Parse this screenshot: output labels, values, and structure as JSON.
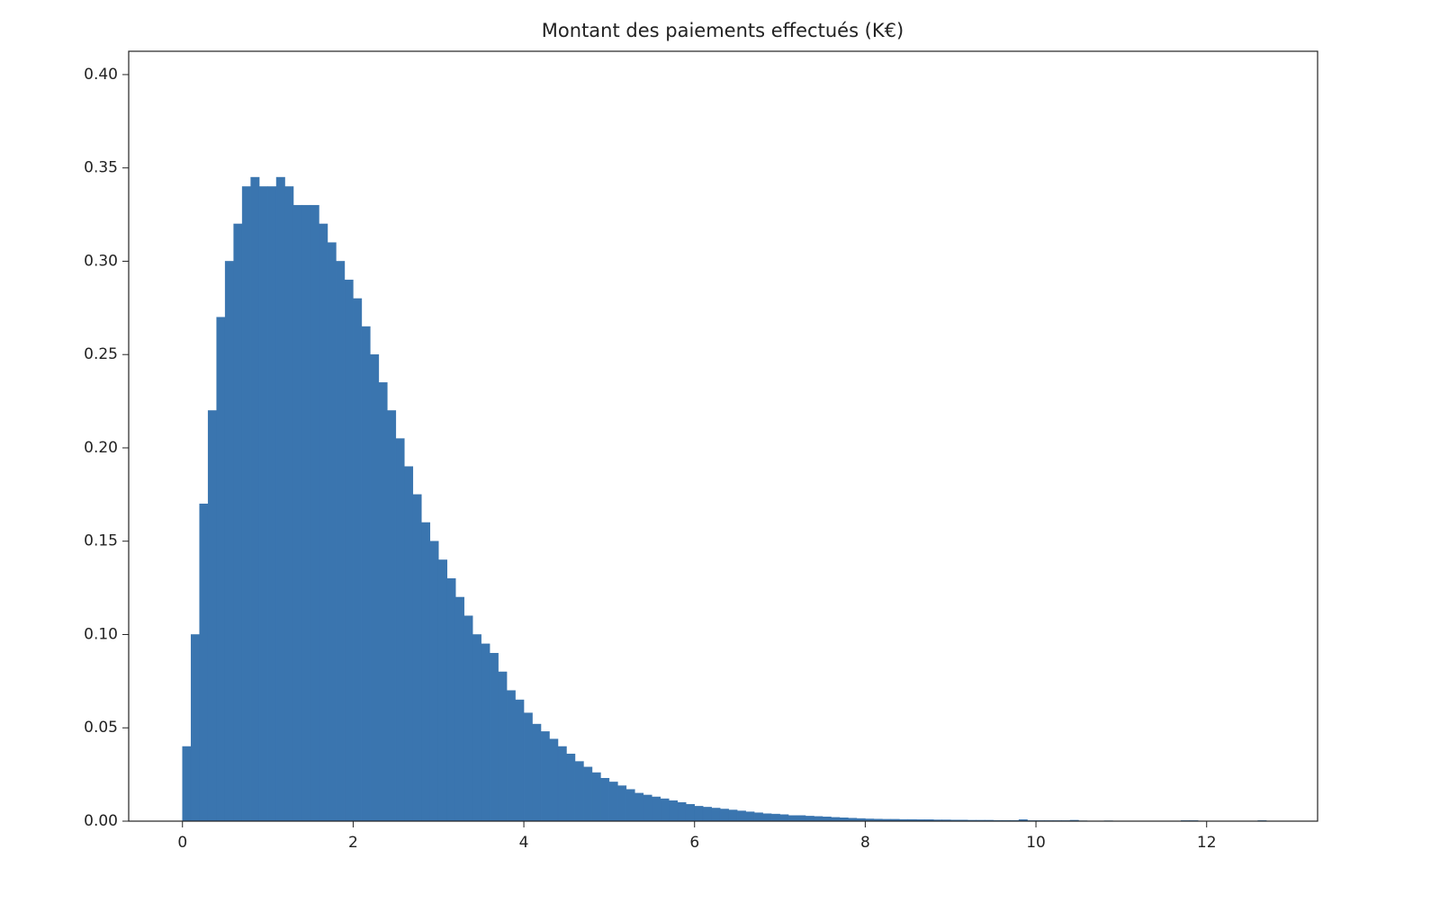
{
  "chart_data": {
    "type": "histogram",
    "title": "Montant des paiements effectués (K€)",
    "color": "#3a75af",
    "bins": [
      0,
      0.1,
      0.2,
      0.3,
      0.4,
      0.5,
      0.6,
      0.7,
      0.8,
      0.9,
      1,
      1.1,
      1.2,
      1.3,
      1.4,
      1.5,
      1.6,
      1.7,
      1.8,
      1.9,
      2,
      2.1,
      2.2,
      2.3,
      2.4,
      2.5,
      2.6,
      2.7,
      2.8,
      2.9,
      3,
      3.1,
      3.2,
      3.3,
      3.4,
      3.5,
      3.6,
      3.7,
      3.8,
      3.9,
      4,
      4.1,
      4.2,
      4.3,
      4.4,
      4.5,
      4.6,
      4.7,
      4.8,
      4.9,
      5,
      5.1,
      5.2,
      5.3,
      5.4,
      5.5,
      5.6,
      5.7,
      5.8,
      5.9,
      6,
      6.1,
      6.2,
      6.3,
      6.4,
      6.5,
      6.6,
      6.7,
      6.8,
      6.9,
      7,
      7.1,
      7.2,
      7.3,
      7.4,
      7.5,
      7.6,
      7.7,
      7.8,
      7.9,
      8,
      8.1,
      8.2,
      8.3,
      8.4,
      8.5,
      8.6,
      8.7,
      8.8,
      8.9,
      9,
      9.1,
      9.2,
      9.3,
      9.4,
      9.5,
      9.6,
      9.7,
      9.8,
      9.9,
      10,
      10.1,
      10.2,
      10.3,
      10.4,
      10.5,
      10.6,
      10.7,
      10.8,
      10.9,
      11,
      11.1,
      11.2,
      11.3,
      11.4,
      11.5,
      11.6,
      11.7,
      11.8,
      11.9,
      12,
      12.1,
      12.2,
      12.3,
      12.4,
      12.5,
      12.6,
      12.7
    ],
    "values": [
      0.04,
      0.1,
      0.17,
      0.22,
      0.27,
      0.3,
      0.32,
      0.34,
      0.345,
      0.34,
      0.34,
      0.345,
      0.34,
      0.33,
      0.33,
      0.33,
      0.32,
      0.31,
      0.3,
      0.29,
      0.28,
      0.265,
      0.25,
      0.235,
      0.22,
      0.205,
      0.19,
      0.175,
      0.16,
      0.15,
      0.14,
      0.13,
      0.12,
      0.11,
      0.1,
      0.095,
      0.09,
      0.08,
      0.07,
      0.065,
      0.058,
      0.052,
      0.048,
      0.044,
      0.04,
      0.036,
      0.032,
      0.029,
      0.026,
      0.023,
      0.021,
      0.019,
      0.017,
      0.015,
      0.014,
      0.013,
      0.012,
      0.011,
      0.01,
      0.009,
      0.008,
      0.0075,
      0.007,
      0.0065,
      0.006,
      0.0055,
      0.005,
      0.0045,
      0.004,
      0.0038,
      0.0035,
      0.003,
      0.003,
      0.0027,
      0.0025,
      0.0023,
      0.002,
      0.0018,
      0.0016,
      0.0014,
      0.0012,
      0.0011,
      0.001,
      0.001,
      0.0009,
      0.0009,
      0.0008,
      0.0008,
      0.0007,
      0.0007,
      0.0006,
      0.0006,
      0.0005,
      0.0005,
      0.0005,
      0.0004,
      0.0004,
      0.0004,
      0.0008,
      0.0003,
      0.0003,
      0.0003,
      0.0003,
      0.0003,
      0.0005,
      0.0002,
      0,
      0,
      0.0002,
      0,
      0,
      0,
      0,
      0,
      0,
      0,
      0,
      0.0003,
      0.0003,
      0,
      0,
      0,
      0,
      0,
      0,
      0,
      0.0003
    ],
    "xlim": [
      -0.63,
      13.3
    ],
    "xticks": [
      0,
      2,
      4,
      6,
      8,
      10,
      12
    ],
    "ylim": [
      0,
      0.4125
    ],
    "yticks": [
      {
        "value": 0,
        "label": "0.00"
      },
      {
        "value": 0.05,
        "label": "0.05"
      },
      {
        "value": 0.1,
        "label": "0.10"
      },
      {
        "value": 0.15,
        "label": "0.15"
      },
      {
        "value": 0.2,
        "label": "0.20"
      },
      {
        "value": 0.25,
        "label": "0.25"
      },
      {
        "value": 0.3,
        "label": "0.30"
      },
      {
        "value": 0.35,
        "label": "0.35"
      },
      {
        "value": 0.4,
        "label": "0.40"
      }
    ]
  }
}
